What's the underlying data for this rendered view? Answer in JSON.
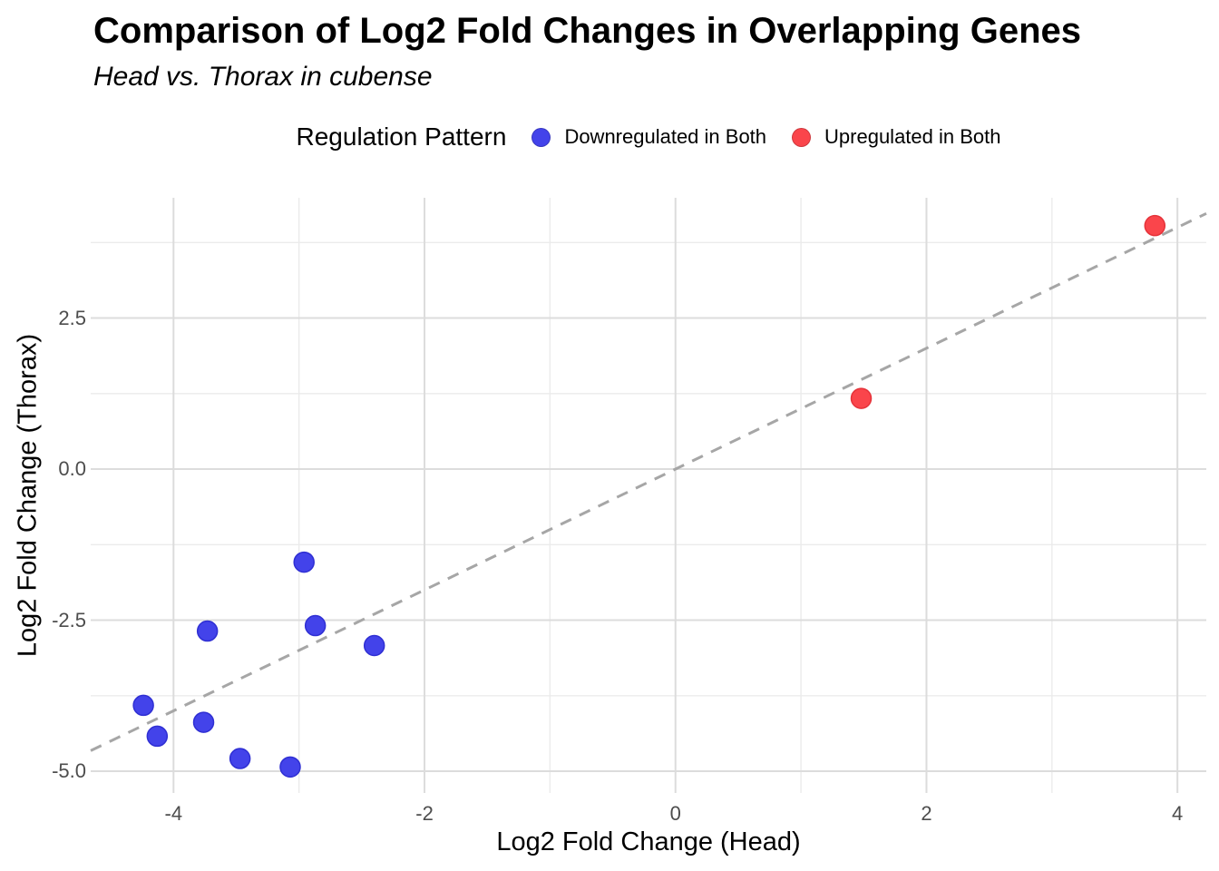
{
  "chart_data": {
    "type": "scatter",
    "title": "Comparison of Log2 Fold Changes in Overlapping Genes",
    "subtitle": "Head vs. Thorax in cubense",
    "xlabel": "Log2 Fold Change (Head)",
    "ylabel": "Log2 Fold Change (Thorax)",
    "xlim": [
      -4.66,
      4.23
    ],
    "ylim": [
      -5.36,
      4.49
    ],
    "x_major_ticks": [
      -4,
      -2,
      0,
      2,
      4
    ],
    "x_tick_labels": [
      "-4",
      "-2",
      "0",
      "2",
      "4"
    ],
    "x_minor_ticks": [
      -3,
      -1,
      1,
      3
    ],
    "y_major_ticks": [
      2.5,
      0.0,
      -2.5,
      -5.0
    ],
    "y_tick_labels": [
      "2.5",
      "0.0",
      "-2.5",
      "-5.0"
    ],
    "y_minor_ticks": [
      3.75,
      1.25,
      -1.25,
      -3.75
    ],
    "grid": {
      "major_color": "#DCDCDC",
      "minor_color": "#EBEBEB"
    },
    "reference_line": {
      "type": "identity y = x",
      "style": "dashed",
      "color": "#A6A6A6"
    },
    "legend": {
      "title": "Regulation Pattern",
      "position": "top"
    },
    "point_radius": 11,
    "series": [
      {
        "name": "Downregulated in Both",
        "color": "#4343EA",
        "edge_color": "#2F2FD3",
        "points": [
          [
            -2.96,
            -1.54
          ],
          [
            -3.73,
            -2.68
          ],
          [
            -2.87,
            -2.59
          ],
          [
            -2.4,
            -2.92
          ],
          [
            -4.24,
            -3.91
          ],
          [
            -3.76,
            -4.19
          ],
          [
            -4.13,
            -4.42
          ],
          [
            -3.47,
            -4.79
          ],
          [
            -3.07,
            -4.93
          ]
        ]
      },
      {
        "name": "Upregulated in Both",
        "color": "#FA454B",
        "edge_color": "#E5333A",
        "points": [
          [
            1.48,
            1.17
          ],
          [
            3.82,
            4.03
          ]
        ]
      }
    ]
  }
}
